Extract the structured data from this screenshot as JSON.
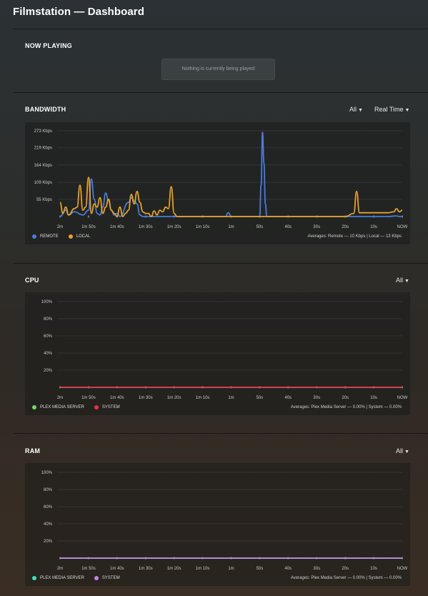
{
  "title": "Filmstation — Dashboard",
  "now_playing": {
    "heading": "NOW PLAYING",
    "empty_message": "Nothing is currently being played"
  },
  "bandwidth": {
    "heading": "BANDWIDTH",
    "filter": "All",
    "range": "Real Time",
    "legend": [
      {
        "label": "REMOTE",
        "color": "#4a7bd9"
      },
      {
        "label": "LOCAL",
        "color": "#e6a12a"
      }
    ],
    "averages": "Averages: Remote — 10 Kbps | Local — 13 Kbps"
  },
  "cpu": {
    "heading": "CPU",
    "filter": "All",
    "legend": [
      {
        "label": "PLEX MEDIA SERVER",
        "color": "#7ed36a"
      },
      {
        "label": "SYSTEM",
        "color": "#e3344a"
      }
    ],
    "averages": "Averages: Plex Media Server — 0.00% | System — 0.00%"
  },
  "ram": {
    "heading": "RAM",
    "filter": "All",
    "legend": [
      {
        "label": "PLEX MEDIA SERVER",
        "color": "#3ee0b9"
      },
      {
        "label": "SYSTEM",
        "color": "#c386dc"
      }
    ],
    "averages": "Averages: Plex Media Server — 0.00% | System — 0.00%"
  },
  "chart_data": [
    {
      "type": "line",
      "id": "bandwidth",
      "yunit": "Kbps",
      "ylim": [
        0,
        273
      ],
      "yticks": [
        "273 Kbps",
        "219 Kbps",
        "164 Kbps",
        "109 Kbps",
        "55 Kbps"
      ],
      "ytick_values": [
        273,
        219,
        164,
        109,
        55
      ],
      "xlabels": [
        "2m",
        "1m 50s",
        "1m 40s",
        "1m 30s",
        "1m 20s",
        "1m 10s",
        "1m",
        "50s",
        "40s",
        "30s",
        "20s",
        "10s",
        "NOW"
      ],
      "grid": true,
      "series": [
        {
          "name": "REMOTE",
          "color": "#4a7bd9",
          "x": [
            120,
            118,
            117,
            115,
            112,
            110,
            109,
            108,
            107,
            106,
            105,
            104,
            103,
            102,
            101,
            100,
            99,
            96,
            95,
            94,
            93,
            92,
            91,
            90,
            85,
            80,
            75,
            70,
            65,
            62,
            61,
            60,
            59,
            58,
            50,
            49.5,
            49,
            48.5,
            48,
            47.5,
            47,
            46,
            40,
            30,
            20,
            10,
            5,
            2,
            1,
            0
          ],
          "y": [
            0,
            20,
            5,
            15,
            5,
            20,
            120,
            55,
            10,
            5,
            30,
            75,
            50,
            20,
            5,
            10,
            0,
            45,
            60,
            50,
            40,
            5,
            0,
            0,
            0,
            0,
            0,
            0,
            0,
            0,
            12,
            0,
            0,
            0,
            0,
            100,
            268,
            170,
            40,
            0,
            0,
            0,
            0,
            0,
            0,
            0,
            0,
            2,
            0,
            0
          ]
        },
        {
          "name": "LOCAL",
          "color": "#e6a12a",
          "x": [
            120,
            119,
            118,
            117,
            115,
            114,
            113,
            112,
            111,
            110,
            109,
            108,
            107,
            106,
            105,
            104,
            103,
            102,
            101,
            100,
            99,
            98,
            97,
            96,
            95,
            94,
            93,
            92,
            91,
            90,
            89,
            88,
            87,
            86,
            85,
            84,
            83,
            82,
            81,
            80,
            79,
            78,
            77,
            76,
            75,
            74,
            70,
            60,
            55,
            50,
            49,
            48,
            47,
            46,
            45,
            40,
            30,
            20,
            17,
            16,
            15,
            14,
            10,
            5,
            3,
            2,
            1,
            0
          ],
          "y": [
            45,
            10,
            30,
            5,
            25,
            30,
            100,
            20,
            30,
            125,
            10,
            40,
            30,
            60,
            10,
            30,
            55,
            20,
            10,
            0,
            30,
            0,
            10,
            20,
            70,
            40,
            80,
            45,
            15,
            10,
            10,
            0,
            18,
            5,
            20,
            15,
            30,
            25,
            95,
            10,
            0,
            0,
            0,
            0,
            0,
            0,
            0,
            0,
            0,
            0,
            0,
            0,
            0,
            0,
            0,
            0,
            0,
            0,
            10,
            80,
            12,
            12,
            12,
            12,
            15,
            25,
            15,
            20
          ]
        }
      ]
    },
    {
      "type": "line",
      "id": "cpu",
      "yunit": "%",
      "ylim": [
        0,
        100
      ],
      "yticks": [
        "100%",
        "80%",
        "60%",
        "40%",
        "20%"
      ],
      "ytick_values": [
        100,
        80,
        60,
        40,
        20
      ],
      "xlabels": [
        "2m",
        "1m 50s",
        "1m 40s",
        "1m 30s",
        "1m 20s",
        "1m 10s",
        "1m",
        "50s",
        "40s",
        "30s",
        "20s",
        "10s",
        "NOW"
      ],
      "grid": true,
      "series": [
        {
          "name": "PLEX MEDIA SERVER",
          "color": "#7ed36a",
          "x": [
            120,
            0
          ],
          "y": [
            0,
            0
          ]
        },
        {
          "name": "SYSTEM",
          "color": "#e3344a",
          "x": [
            120,
            0
          ],
          "y": [
            0,
            0
          ]
        }
      ]
    },
    {
      "type": "line",
      "id": "ram",
      "yunit": "%",
      "ylim": [
        0,
        100
      ],
      "yticks": [
        "100%",
        "80%",
        "60%",
        "40%",
        "20%"
      ],
      "ytick_values": [
        100,
        80,
        60,
        40,
        20
      ],
      "xlabels": [
        "2m",
        "1m 50s",
        "1m 40s",
        "1m 30s",
        "1m 20s",
        "1m 10s",
        "1m",
        "50s",
        "40s",
        "30s",
        "20s",
        "10s",
        "NOW"
      ],
      "grid": true,
      "series": [
        {
          "name": "PLEX MEDIA SERVER",
          "color": "#3ee0b9",
          "x": [
            120,
            0
          ],
          "y": [
            0,
            0
          ]
        },
        {
          "name": "SYSTEM",
          "color": "#c386dc",
          "x": [
            120,
            0
          ],
          "y": [
            0,
            0
          ]
        }
      ]
    }
  ]
}
